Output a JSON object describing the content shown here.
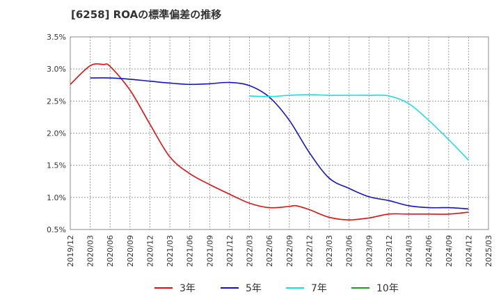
{
  "chart_data": {
    "type": "line",
    "title": "[6258]  ROAの標準偏差の推移",
    "xlabel": "",
    "ylabel": "",
    "x_ticks": [
      "2019/12",
      "2020/03",
      "2020/06",
      "2020/09",
      "2020/12",
      "2021/03",
      "2021/06",
      "2021/09",
      "2021/12",
      "2022/03",
      "2022/06",
      "2022/09",
      "2022/12",
      "2023/03",
      "2023/06",
      "2023/09",
      "2023/12",
      "2024/03",
      "2024/06",
      "2024/09",
      "2024/12",
      "2025/03"
    ],
    "y_ticks": [
      "0.5%",
      "1.0%",
      "1.5%",
      "2.0%",
      "2.5%",
      "3.0%",
      "3.5%"
    ],
    "ylim": [
      0.5,
      3.5
    ],
    "grid": true,
    "legend_position": "bottom",
    "series": [
      {
        "name": "3年",
        "color": "#dd1111",
        "x": [
          "2019/12",
          "2020/03",
          "2020/05",
          "2020/06",
          "2020/09",
          "2020/12",
          "2021/03",
          "2021/06",
          "2021/09",
          "2021/12",
          "2022/03",
          "2022/06",
          "2022/09",
          "2022/10",
          "2022/12",
          "2023/03",
          "2023/06",
          "2023/09",
          "2023/12",
          "2024/03",
          "2024/06",
          "2024/09",
          "2024/12"
        ],
        "values": [
          2.76,
          3.05,
          3.07,
          3.04,
          2.67,
          2.14,
          1.63,
          1.37,
          1.2,
          1.05,
          0.91,
          0.84,
          0.86,
          0.87,
          0.81,
          0.69,
          0.65,
          0.68,
          0.74,
          0.74,
          0.74,
          0.74,
          0.77
        ]
      },
      {
        "name": "5年",
        "color": "#1111cc",
        "x": [
          "2020/03",
          "2020/06",
          "2020/09",
          "2020/12",
          "2021/03",
          "2021/06",
          "2021/09",
          "2021/12",
          "2022/03",
          "2022/06",
          "2022/09",
          "2022/12",
          "2023/03",
          "2023/06",
          "2023/09",
          "2023/12",
          "2024/03",
          "2024/06",
          "2024/09",
          "2024/12"
        ],
        "values": [
          2.86,
          2.86,
          2.84,
          2.81,
          2.78,
          2.76,
          2.77,
          2.79,
          2.74,
          2.56,
          2.2,
          1.7,
          1.3,
          1.14,
          1.01,
          0.95,
          0.87,
          0.84,
          0.84,
          0.82
        ]
      },
      {
        "name": "7年",
        "color": "#22dddd",
        "x": [
          "2022/03",
          "2022/06",
          "2022/09",
          "2022/12",
          "2023/03",
          "2023/06",
          "2023/09",
          "2023/12",
          "2024/03",
          "2024/06",
          "2024/09",
          "2024/12"
        ],
        "values": [
          2.58,
          2.57,
          2.59,
          2.6,
          2.59,
          2.59,
          2.59,
          2.58,
          2.46,
          2.2,
          1.9,
          1.58
        ]
      },
      {
        "name": "10年",
        "color": "#229922",
        "x": [],
        "values": []
      }
    ]
  }
}
